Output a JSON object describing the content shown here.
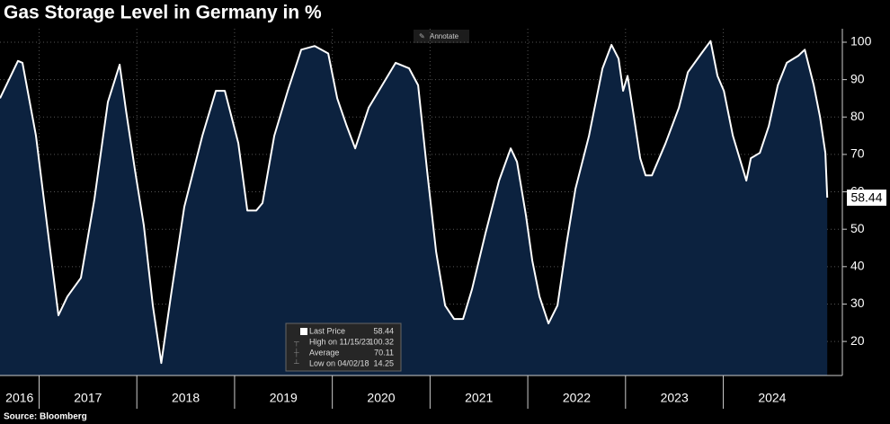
{
  "chart_data": {
    "type": "area",
    "title": "Gas Storage Level in Germany in %",
    "source": "Source: Bloomberg",
    "annotate_button": "Annotate",
    "x": [
      2016.6,
      2016.784,
      2016.83,
      2016.968,
      2017.106,
      2017.198,
      2017.29,
      2017.428,
      2017.566,
      2017.704,
      2017.824,
      2017.888,
      2017.98,
      2018.072,
      2018.164,
      2018.25,
      2018.348,
      2018.486,
      2018.67,
      2018.808,
      2018.9,
      2019.038,
      2019.13,
      2019.222,
      2019.286,
      2019.406,
      2019.544,
      2019.682,
      2019.82,
      2019.958,
      2020.05,
      2020.142,
      2020.234,
      2020.372,
      2020.51,
      2020.648,
      2020.786,
      2020.878,
      2020.97,
      2021.062,
      2021.154,
      2021.246,
      2021.338,
      2021.43,
      2021.568,
      2021.706,
      2021.825,
      2021.89,
      2021.982,
      2022.046,
      2022.12,
      2022.212,
      2022.304,
      2022.396,
      2022.488,
      2022.626,
      2022.764,
      2022.856,
      2022.929,
      2022.975,
      2023.021,
      2023.086,
      2023.15,
      2023.205,
      2023.27,
      2023.408,
      2023.546,
      2023.638,
      2023.776,
      2023.87,
      2023.941,
      2024.006,
      2024.098,
      2024.19,
      2024.236,
      2024.282,
      2024.374,
      2024.466,
      2024.558,
      2024.65,
      2024.769,
      2024.834,
      2024.926,
      2024.99,
      2025.045,
      2025.064
    ],
    "series": [
      {
        "color": "#ffffff",
        "fill": "#0c223f",
        "values": [
          85,
          95,
          94.5,
          75,
          46,
          27,
          32,
          37,
          58,
          84,
          94,
          82,
          66,
          51,
          29.6,
          14.25,
          32,
          56,
          75,
          87,
          87,
          73,
          55,
          55,
          57,
          75,
          87,
          98,
          99,
          97,
          85,
          78,
          71.6,
          82.5,
          88.5,
          94.5,
          93,
          88.5,
          65.6,
          44,
          29.6,
          26,
          26,
          34,
          49,
          63,
          71.6,
          68,
          53.6,
          41.6,
          32,
          24.8,
          29.6,
          46,
          60.8,
          75,
          93,
          99.3,
          95.6,
          87,
          91,
          80,
          69,
          64.4,
          64.4,
          72.9,
          82.5,
          92,
          97,
          100.32,
          91,
          87,
          75,
          67,
          63,
          69,
          70.4,
          77.6,
          88.5,
          94.5,
          96.4,
          98,
          88.5,
          80,
          70.4,
          58.44
        ]
      }
    ],
    "xlim": [
      2016.6,
      2025.2
    ],
    "xticks": [
      2016,
      2017,
      2018,
      2019,
      2020,
      2021,
      2022,
      2023,
      2024
    ],
    "ylim": [
      10.9,
      103.6
    ],
    "yticks": [
      20,
      30,
      40,
      50,
      60,
      70,
      80,
      90,
      100
    ],
    "grid": true,
    "stats": [
      {
        "label": "Last Price",
        "value": 58.44
      },
      {
        "label": "High on 11/15/23",
        "value": 100.32
      },
      {
        "label": "Average",
        "value": 70.11
      },
      {
        "label": "Low on 04/02/18",
        "value": 14.25
      }
    ]
  }
}
